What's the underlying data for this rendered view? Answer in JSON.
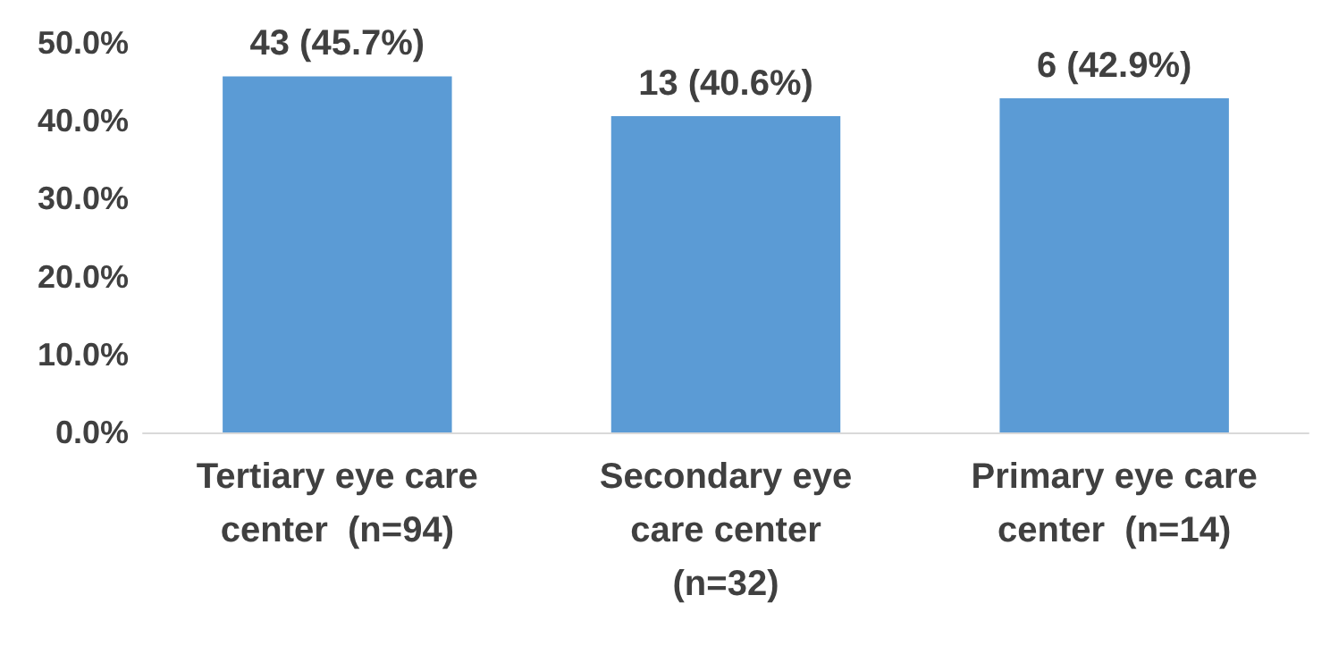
{
  "chart_data": {
    "type": "bar",
    "categories": [
      "Tertiary eye care\ncenter  (n=94)",
      "Secondary eye\ncare center\n(n=32)",
      "Primary eye care\ncenter  (n=14)"
    ],
    "values": [
      45.7,
      40.6,
      42.9
    ],
    "value_labels": [
      "43 (45.7%)",
      "13 (40.6%)",
      "6 (42.9%)"
    ],
    "color": "#5b9bd5",
    "ylim": [
      0,
      50
    ],
    "yticks": [
      {
        "value": 0,
        "label": "0.0%"
      },
      {
        "value": 10,
        "label": "10.0%"
      },
      {
        "value": 20,
        "label": "20.0%"
      },
      {
        "value": 30,
        "label": "30.0%"
      },
      {
        "value": 40,
        "label": "40.0%"
      },
      {
        "value": 50,
        "label": "50.0%"
      }
    ],
    "grid": false
  }
}
